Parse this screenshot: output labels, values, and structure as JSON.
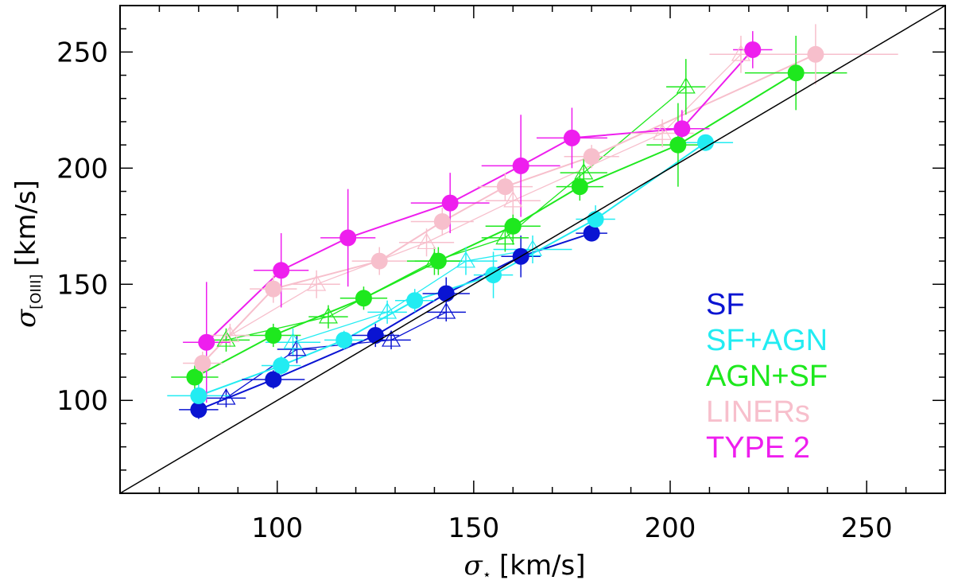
{
  "chart_data": {
    "type": "scatter",
    "xlabel": {
      "symbol": "σ",
      "sub": "⋆",
      "unit": "[km/s]"
    },
    "ylabel": {
      "symbol": "σ",
      "sub": "[OIII]",
      "unit": "[km/s]"
    },
    "xlim": [
      60,
      270
    ],
    "ylim": [
      60,
      270
    ],
    "x_ticks": [
      100,
      150,
      200,
      250
    ],
    "y_ticks": [
      100,
      150,
      200,
      250
    ],
    "reference_line": "one-to-one",
    "series": [
      {
        "name": "SF",
        "color": "#0a14d2",
        "filled": [
          {
            "x": 80,
            "y": 96,
            "xerr": 5,
            "yerr": 4
          },
          {
            "x": 99,
            "y": 109,
            "xerr": 8,
            "yerr": 4
          },
          {
            "x": 125,
            "y": 128,
            "xerr": 6,
            "yerr": 5
          },
          {
            "x": 143,
            "y": 146,
            "xerr": 6,
            "yerr": 7
          },
          {
            "x": 162,
            "y": 162,
            "xerr": 5,
            "yerr": 9
          },
          {
            "x": 180,
            "y": 172,
            "xerr": 4,
            "yerr": 3
          }
        ],
        "open": [
          {
            "x": 87,
            "y": 101,
            "xerr": 5,
            "yerr": 4
          },
          {
            "x": 105,
            "y": 122,
            "xerr": 5,
            "yerr": 6
          },
          {
            "x": 129,
            "y": 126,
            "xerr": 5,
            "yerr": 4
          },
          {
            "x": 143,
            "y": 138,
            "xerr": 5,
            "yerr": 4
          }
        ]
      },
      {
        "name": "SF+AGN",
        "color": "#22ecf2",
        "filled": [
          {
            "x": 80,
            "y": 102,
            "xerr": 8,
            "yerr": 5
          },
          {
            "x": 101,
            "y": 115,
            "xerr": 5,
            "yerr": 4
          },
          {
            "x": 117,
            "y": 126,
            "xerr": 5,
            "yerr": 4
          },
          {
            "x": 135,
            "y": 143,
            "xerr": 5,
            "yerr": 5
          },
          {
            "x": 155,
            "y": 154,
            "xerr": 5,
            "yerr": 10
          },
          {
            "x": 181,
            "y": 178,
            "xerr": 5,
            "yerr": 6
          },
          {
            "x": 209,
            "y": 211,
            "xerr": 7,
            "yerr": 3
          }
        ],
        "open": [
          {
            "x": 104,
            "y": 125,
            "xerr": 7,
            "yerr": 6
          },
          {
            "x": 128,
            "y": 138,
            "xerr": 5,
            "yerr": 5
          },
          {
            "x": 148,
            "y": 160,
            "xerr": 8,
            "yerr": 6
          },
          {
            "x": 165,
            "y": 165,
            "xerr": 10,
            "yerr": 6
          }
        ]
      },
      {
        "name": "AGN+SF",
        "color": "#1ee81e",
        "filled": [
          {
            "x": 79,
            "y": 110,
            "xerr": 6,
            "yerr": 5
          },
          {
            "x": 99,
            "y": 128,
            "xerr": 7,
            "yerr": 5
          },
          {
            "x": 122,
            "y": 144,
            "xerr": 6,
            "yerr": 5
          },
          {
            "x": 141,
            "y": 160,
            "xerr": 6,
            "yerr": 6
          },
          {
            "x": 160,
            "y": 175,
            "xerr": 7,
            "yerr": 8
          },
          {
            "x": 177,
            "y": 192,
            "xerr": 6,
            "yerr": 6
          },
          {
            "x": 202,
            "y": 210,
            "xerr": 8,
            "yerr": 18
          },
          {
            "x": 232,
            "y": 241,
            "xerr": 13,
            "yerr": 16
          }
        ],
        "open": [
          {
            "x": 87,
            "y": 126,
            "xerr": 6,
            "yerr": 5
          },
          {
            "x": 113,
            "y": 136,
            "xerr": 5,
            "yerr": 5
          },
          {
            "x": 140,
            "y": 160,
            "xerr": 7,
            "yerr": 6
          },
          {
            "x": 158,
            "y": 170,
            "xerr": 6,
            "yerr": 6
          },
          {
            "x": 178,
            "y": 198,
            "xerr": 6,
            "yerr": 6
          },
          {
            "x": 204,
            "y": 235,
            "xerr": 5,
            "yerr": 12
          }
        ]
      },
      {
        "name": "LINERs",
        "color": "#f7bfcc",
        "filled": [
          {
            "x": 81,
            "y": 116,
            "xerr": 5,
            "yerr": 5
          },
          {
            "x": 99,
            "y": 148,
            "xerr": 6,
            "yerr": 6
          },
          {
            "x": 126,
            "y": 160,
            "xerr": 7,
            "yerr": 6
          },
          {
            "x": 142,
            "y": 177,
            "xerr": 8,
            "yerr": 6
          },
          {
            "x": 158,
            "y": 192,
            "xerr": 7,
            "yerr": 6
          },
          {
            "x": 180,
            "y": 205,
            "xerr": 7,
            "yerr": 5
          },
          {
            "x": 237,
            "y": 249,
            "xerr": 21,
            "yerr": 13
          }
        ],
        "open": [
          {
            "x": 88,
            "y": 128,
            "xerr": 5,
            "yerr": 5
          },
          {
            "x": 110,
            "y": 150,
            "xerr": 6,
            "yerr": 6
          },
          {
            "x": 138,
            "y": 168,
            "xerr": 7,
            "yerr": 6
          },
          {
            "x": 160,
            "y": 186,
            "xerr": 7,
            "yerr": 6
          },
          {
            "x": 198,
            "y": 215,
            "xerr": 8,
            "yerr": 6
          },
          {
            "x": 218,
            "y": 249,
            "xerr": 8,
            "yerr": 8
          }
        ]
      },
      {
        "name": "TYPE 2",
        "color": "#ee1eee",
        "filled": [
          {
            "x": 82,
            "y": 125,
            "xerr": 6,
            "yerr": 26
          },
          {
            "x": 101,
            "y": 156,
            "xerr": 7,
            "yerr": 16
          },
          {
            "x": 118,
            "y": 170,
            "xerr": 7,
            "yerr": 21
          },
          {
            "x": 144,
            "y": 185,
            "xerr": 10,
            "yerr": 13
          },
          {
            "x": 162,
            "y": 201,
            "xerr": 10,
            "yerr": 22
          },
          {
            "x": 175,
            "y": 213,
            "xerr": 9,
            "yerr": 13
          },
          {
            "x": 203,
            "y": 217,
            "xerr": 7,
            "yerr": 8
          },
          {
            "x": 221,
            "y": 251,
            "xerr": 5,
            "yerr": 8
          }
        ],
        "open": []
      }
    ],
    "legend_position": "bottom-right"
  }
}
